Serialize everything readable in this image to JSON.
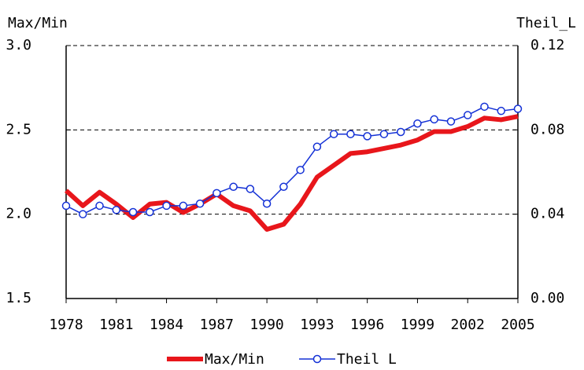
{
  "chart_data": {
    "type": "line",
    "y_label": "Max/Min",
    "y2_label": "Theil_L",
    "x": [
      1978,
      1979,
      1980,
      1981,
      1982,
      1983,
      1984,
      1985,
      1986,
      1987,
      1988,
      1989,
      1990,
      1991,
      1992,
      1993,
      1994,
      1995,
      1996,
      1997,
      1998,
      1999,
      2000,
      2001,
      2002,
      2003,
      2004,
      2005
    ],
    "xlim": [
      1978,
      2005
    ],
    "xticks": [
      1978,
      1981,
      1984,
      1987,
      1990,
      1993,
      1996,
      1999,
      2002,
      2005
    ],
    "ylim": [
      1.5,
      3
    ],
    "yticks": [
      1.5,
      {
        "value": 2,
        "label": "2.0"
      },
      2.5,
      {
        "value": 3,
        "label": "3.0"
      }
    ],
    "y2lim": [
      0,
      0.12
    ],
    "y2ticks": [
      {
        "value": 0,
        "label": "0.00"
      },
      0.04,
      0.08,
      0.12
    ],
    "grid": true,
    "legend": "bottom",
    "series": [
      {
        "name": "Max/Min",
        "color": "#e8161b",
        "values": [
          2.14,
          2.05,
          2.13,
          2.06,
          1.98,
          2.06,
          2.07,
          2.01,
          2.06,
          2.12,
          2.05,
          2.02,
          1.91,
          1.94,
          2.06,
          2.22,
          2.29,
          2.36,
          2.37,
          2.39,
          2.41,
          2.44,
          2.49,
          2.49,
          2.52,
          2.57,
          2.56,
          2.58
        ]
      },
      {
        "name": "Theil L",
        "color": "#1431d6",
        "axis": "y2",
        "marker": "circle",
        "values": [
          0.044,
          0.04,
          0.044,
          0.042,
          0.041,
          0.041,
          0.044,
          0.044,
          0.045,
          0.05,
          0.053,
          0.052,
          0.045,
          0.053,
          0.061,
          0.072,
          0.078,
          0.078,
          0.077,
          0.078,
          0.079,
          0.083,
          0.085,
          0.084,
          0.087,
          0.091,
          0.089,
          0.09
        ]
      }
    ]
  }
}
